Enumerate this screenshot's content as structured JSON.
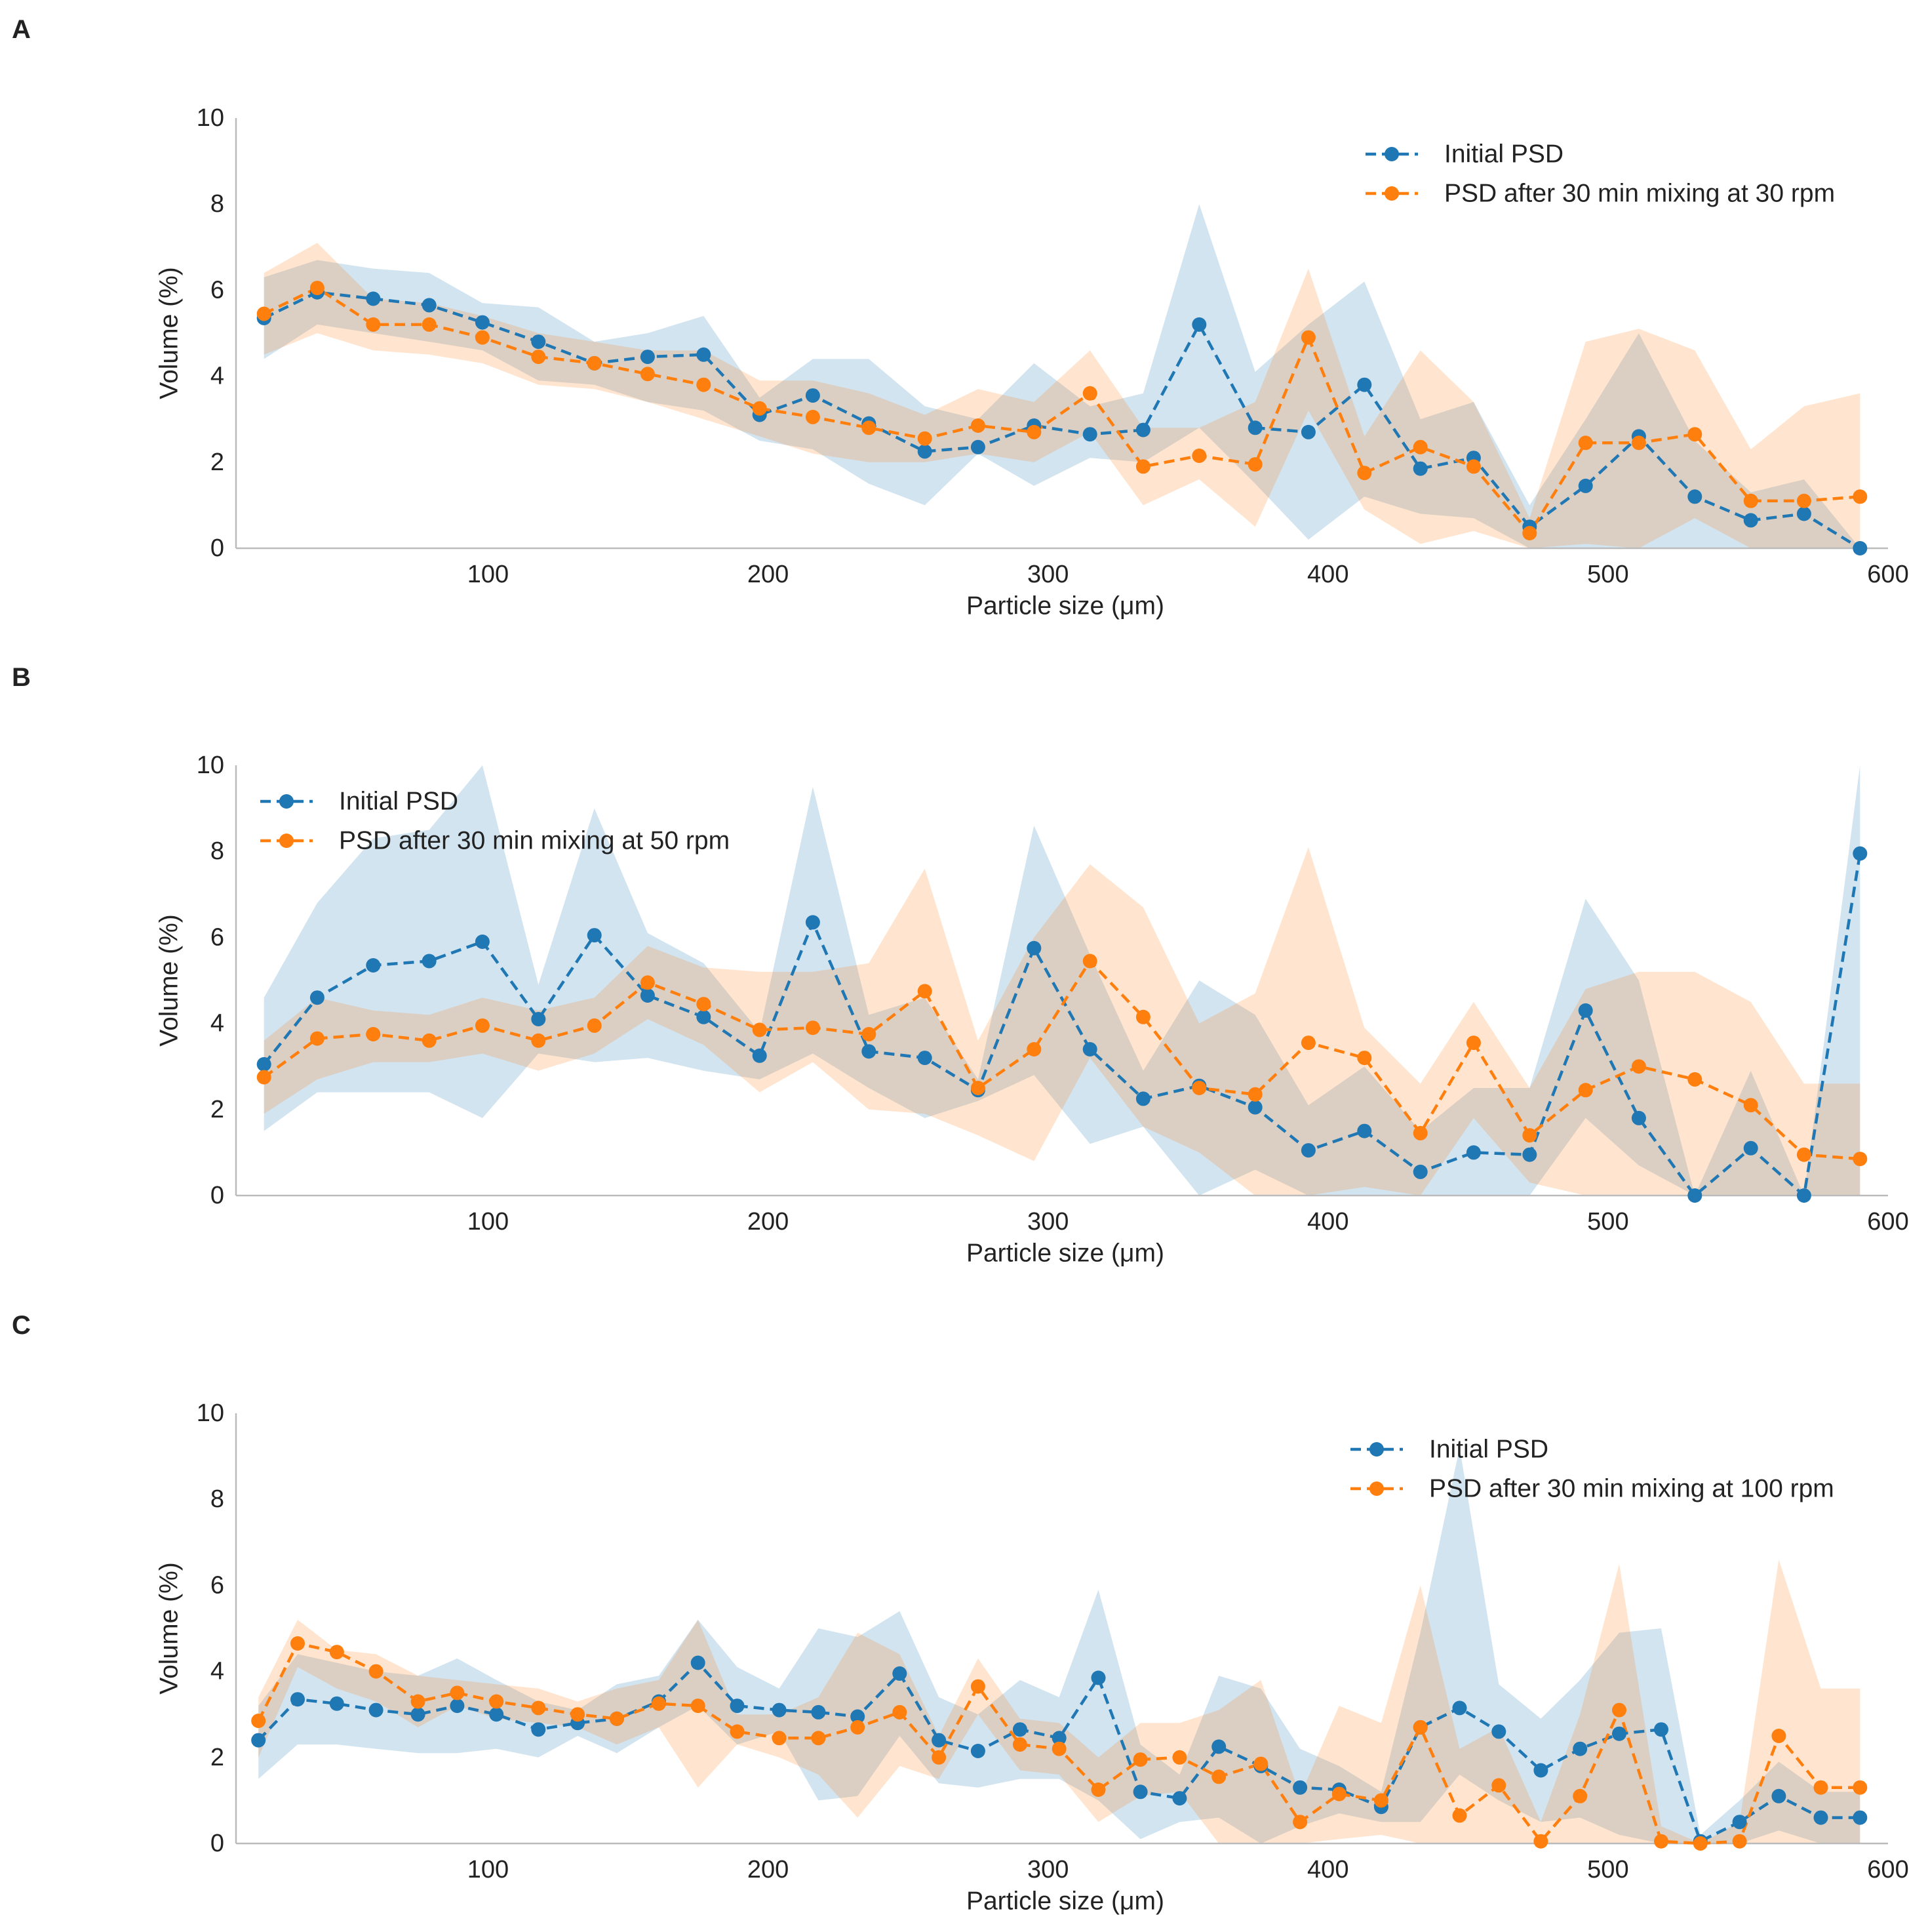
{
  "colors": {
    "initial": "#1f77b4",
    "mixed": "#ff7f0e",
    "axis": "#bbbbbb",
    "text": "#222222"
  },
  "chart_data": [
    {
      "panel": "A",
      "type": "line",
      "xlabel": "Particle size (μm)",
      "ylabel": "Volume (%)",
      "xlim": [
        10,
        600
      ],
      "ylim": [
        0,
        10
      ],
      "xticks": [
        100,
        200,
        300,
        400,
        500,
        600
      ],
      "yticks": [
        0,
        2,
        4,
        6,
        8,
        10
      ],
      "legend_position": "top-right",
      "x": [
        20,
        39,
        59,
        79,
        98,
        118,
        138,
        157,
        177,
        197,
        216,
        236,
        256,
        275,
        295,
        315,
        334,
        354,
        374,
        393,
        413,
        433,
        452,
        472,
        492,
        511,
        531,
        551,
        570,
        590
      ],
      "series": [
        {
          "name": "Initial PSD",
          "color": "#1f77b4",
          "values": [
            5.35,
            5.95,
            5.8,
            5.65,
            5.25,
            4.8,
            4.3,
            4.45,
            4.5,
            3.1,
            3.55,
            2.9,
            2.25,
            2.35,
            2.85,
            2.65,
            2.75,
            5.2,
            2.8,
            2.7,
            3.8,
            1.85,
            2.1,
            0.5,
            1.45,
            2.6,
            1.2,
            0.65,
            0.8,
            0.0
          ],
          "band_lower": [
            4.4,
            5.2,
            5.0,
            4.8,
            4.6,
            3.9,
            3.8,
            3.4,
            3.2,
            2.5,
            2.3,
            1.5,
            1.0,
            2.2,
            1.45,
            2.1,
            2.0,
            2.8,
            1.5,
            0.2,
            1.2,
            0.8,
            0.7,
            0.0,
            0.0,
            0.0,
            0.0,
            0.0,
            0.0,
            0.0
          ],
          "band_upper": [
            6.3,
            6.7,
            6.5,
            6.4,
            5.7,
            5.6,
            4.8,
            5.0,
            5.4,
            3.5,
            4.4,
            4.4,
            3.3,
            3.0,
            4.3,
            3.3,
            3.6,
            8.0,
            4.1,
            5.2,
            6.2,
            3.0,
            3.4,
            1.0,
            3.0,
            5.0,
            2.5,
            1.3,
            1.6,
            0.0
          ]
        },
        {
          "name": "PSD after 30 min mixing at 30 rpm",
          "color": "#ff7f0e",
          "values": [
            5.45,
            6.05,
            5.2,
            5.2,
            4.9,
            4.45,
            4.3,
            4.05,
            3.8,
            3.25,
            3.05,
            2.8,
            2.55,
            2.85,
            2.7,
            3.6,
            1.9,
            2.15,
            1.95,
            4.9,
            1.75,
            2.35,
            1.9,
            0.35,
            2.45,
            2.45,
            2.65,
            1.1,
            1.1,
            1.2
          ],
          "band_lower": [
            4.5,
            5.0,
            4.6,
            4.5,
            4.3,
            3.8,
            3.7,
            3.4,
            3.0,
            2.6,
            2.2,
            2.0,
            2.0,
            2.2,
            2.0,
            2.7,
            1.0,
            1.6,
            0.5,
            3.2,
            0.9,
            0.1,
            0.4,
            0.0,
            0.1,
            0.0,
            0.7,
            0.0,
            0.0,
            0.0
          ],
          "band_upper": [
            6.4,
            7.1,
            5.8,
            5.7,
            5.4,
            5.0,
            4.8,
            4.6,
            4.6,
            3.9,
            3.9,
            3.6,
            3.1,
            3.7,
            3.4,
            4.6,
            2.8,
            2.8,
            3.4,
            6.5,
            2.6,
            4.6,
            3.4,
            0.7,
            4.8,
            5.1,
            4.6,
            2.3,
            3.3,
            3.6
          ]
        }
      ]
    },
    {
      "panel": "B",
      "type": "line",
      "xlabel": "Particle size (μm)",
      "ylabel": "Volume (%)",
      "xlim": [
        10,
        600
      ],
      "ylim": [
        0,
        10
      ],
      "xticks": [
        100,
        200,
        300,
        400,
        500,
        600
      ],
      "yticks": [
        0,
        2,
        4,
        6,
        8,
        10
      ],
      "legend_position": "top-left",
      "x": [
        20,
        39,
        59,
        79,
        98,
        118,
        138,
        157,
        177,
        197,
        216,
        236,
        256,
        275,
        295,
        315,
        334,
        354,
        374,
        393,
        413,
        433,
        452,
        472,
        492,
        511,
        531,
        551,
        570,
        590
      ],
      "series": [
        {
          "name": "Initial PSD",
          "color": "#1f77b4",
          "values": [
            3.05,
            4.6,
            5.35,
            5.45,
            5.9,
            4.1,
            6.05,
            4.65,
            4.15,
            3.25,
            6.35,
            3.35,
            3.2,
            2.45,
            5.75,
            3.4,
            2.25,
            2.55,
            2.05,
            1.05,
            1.5,
            0.55,
            1.0,
            0.95,
            4.3,
            1.8,
            0.0,
            1.1,
            0.0,
            7.95
          ],
          "band_lower": [
            1.5,
            2.4,
            2.4,
            2.4,
            1.8,
            3.3,
            3.1,
            3.2,
            2.9,
            2.7,
            3.3,
            2.5,
            1.8,
            2.2,
            2.8,
            1.2,
            1.6,
            0.0,
            0.6,
            0.0,
            0.0,
            0.0,
            0.0,
            0.0,
            1.8,
            0.7,
            0.0,
            0.0,
            0.0,
            0.0
          ],
          "band_upper": [
            4.6,
            6.8,
            8.3,
            8.5,
            10.0,
            4.9,
            9.0,
            6.1,
            5.4,
            3.8,
            9.5,
            4.2,
            4.6,
            2.7,
            8.6,
            5.6,
            2.9,
            5.0,
            4.2,
            2.1,
            3.0,
            1.5,
            2.5,
            2.5,
            6.9,
            5.0,
            0.0,
            2.9,
            0.0,
            10.0
          ]
        },
        {
          "name": "PSD after 30 min mixing at 50 rpm",
          "color": "#ff7f0e",
          "values": [
            2.75,
            3.65,
            3.75,
            3.6,
            3.95,
            3.6,
            3.95,
            4.95,
            4.45,
            3.85,
            3.9,
            3.75,
            4.75,
            2.5,
            3.4,
            5.45,
            4.15,
            2.5,
            2.35,
            3.55,
            3.2,
            1.45,
            3.55,
            1.4,
            2.45,
            3.0,
            2.7,
            2.1,
            0.95,
            0.85
          ],
          "band_lower": [
            1.9,
            2.7,
            3.1,
            3.1,
            3.3,
            2.9,
            3.3,
            4.1,
            3.5,
            2.4,
            3.1,
            2.0,
            1.9,
            1.4,
            0.8,
            3.2,
            1.6,
            1.0,
            0.0,
            0.0,
            0.2,
            0.0,
            1.8,
            0.3,
            0.0,
            0.0,
            0.0,
            0.0,
            0.0,
            0.0
          ],
          "band_upper": [
            3.6,
            4.6,
            4.3,
            4.2,
            4.6,
            4.3,
            4.6,
            5.8,
            5.3,
            5.2,
            5.2,
            5.4,
            7.6,
            3.6,
            6.0,
            7.7,
            6.7,
            4.0,
            4.7,
            8.1,
            3.9,
            2.6,
            4.5,
            2.5,
            4.8,
            5.2,
            5.2,
            4.5,
            2.6,
            2.6
          ]
        }
      ]
    },
    {
      "panel": "C",
      "type": "line",
      "xlabel": "Particle size (μm)",
      "ylabel": "Volume (%)",
      "xlim": [
        10,
        600
      ],
      "ylim": [
        0,
        10
      ],
      "xticks": [
        100,
        200,
        300,
        400,
        500,
        600
      ],
      "yticks": [
        0,
        2,
        4,
        6,
        8,
        10
      ],
      "legend_position": "top-right",
      "x": [
        18,
        32,
        46,
        60,
        75,
        89,
        103,
        118,
        132,
        146,
        161,
        175,
        189,
        204,
        218,
        232,
        247,
        261,
        275,
        290,
        304,
        318,
        333,
        347,
        361,
        376,
        390,
        404,
        419,
        433,
        447,
        461,
        476,
        490,
        504,
        519,
        533,
        547,
        561,
        576,
        590
      ],
      "series": [
        {
          "name": "Initial PSD",
          "color": "#1f77b4",
          "values": [
            2.4,
            3.35,
            3.25,
            3.1,
            3.0,
            3.2,
            3.0,
            2.65,
            2.8,
            2.9,
            3.3,
            4.2,
            3.2,
            3.1,
            3.05,
            2.95,
            3.95,
            2.4,
            2.15,
            2.65,
            2.45,
            3.85,
            1.2,
            1.05,
            2.25,
            1.8,
            1.3,
            1.25,
            0.85,
            2.7,
            3.15,
            2.6,
            1.7,
            2.2,
            2.55,
            2.65,
            0.05,
            0.5,
            1.1,
            0.6,
            0.6
          ],
          "band_lower": [
            1.5,
            2.3,
            2.3,
            2.2,
            2.1,
            2.1,
            2.2,
            2.0,
            2.5,
            2.1,
            2.7,
            3.2,
            2.3,
            2.6,
            1.0,
            1.1,
            2.5,
            1.4,
            1.3,
            1.5,
            1.5,
            1.0,
            0.1,
            0.5,
            0.6,
            0.0,
            0.4,
            0.7,
            0.5,
            0.5,
            1.6,
            1.0,
            0.5,
            0.6,
            0.2,
            0.0,
            0.0,
            0.0,
            0.3,
            0.0,
            0.0
          ],
          "band_upper": [
            3.2,
            4.4,
            4.2,
            4.0,
            3.9,
            4.3,
            3.8,
            3.3,
            3.1,
            3.7,
            3.9,
            5.2,
            4.1,
            3.6,
            5.0,
            4.8,
            5.4,
            3.4,
            3.0,
            3.8,
            3.4,
            5.9,
            2.3,
            1.6,
            3.9,
            3.6,
            2.2,
            1.8,
            1.2,
            4.9,
            9.2,
            3.7,
            2.9,
            3.8,
            4.9,
            5.0,
            0.2,
            1.0,
            1.9,
            1.2,
            1.2
          ]
        },
        {
          "name": "PSD after 30 min mixing at 100 rpm",
          "color": "#ff7f0e",
          "values": [
            2.85,
            4.65,
            4.45,
            4.0,
            3.3,
            3.5,
            3.3,
            3.15,
            3.0,
            2.9,
            3.25,
            3.2,
            2.6,
            2.45,
            2.45,
            2.7,
            3.05,
            2.0,
            3.65,
            2.3,
            2.2,
            1.25,
            1.95,
            2.0,
            1.55,
            1.85,
            0.5,
            1.15,
            1.0,
            2.7,
            0.65,
            1.35,
            0.05,
            1.1,
            3.1,
            0.05,
            0.0,
            0.05,
            2.5,
            1.3,
            1.3
          ],
          "band_lower": [
            2.0,
            4.1,
            3.6,
            3.3,
            2.7,
            3.2,
            2.9,
            2.8,
            2.7,
            2.3,
            2.7,
            1.3,
            2.3,
            2.0,
            1.6,
            0.6,
            1.8,
            1.5,
            3.0,
            1.7,
            1.6,
            0.5,
            1.1,
            1.2,
            0.0,
            0.0,
            0.0,
            0.1,
            0.2,
            0.0,
            0.0,
            0.0,
            0.0,
            0.0,
            0.0,
            0.0,
            0.0,
            0.0,
            0.0,
            0.0,
            0.0
          ],
          "band_upper": [
            3.4,
            5.2,
            4.5,
            4.4,
            3.9,
            3.8,
            3.7,
            3.6,
            3.3,
            3.6,
            3.8,
            5.2,
            3.0,
            3.0,
            3.4,
            4.9,
            4.4,
            2.5,
            4.3,
            2.9,
            2.8,
            2.0,
            2.8,
            2.8,
            3.1,
            3.8,
            1.1,
            3.2,
            2.8,
            6.0,
            2.2,
            2.7,
            0.5,
            3.0,
            6.5,
            0.4,
            0.0,
            0.5,
            6.6,
            3.6,
            3.6
          ]
        }
      ]
    }
  ]
}
